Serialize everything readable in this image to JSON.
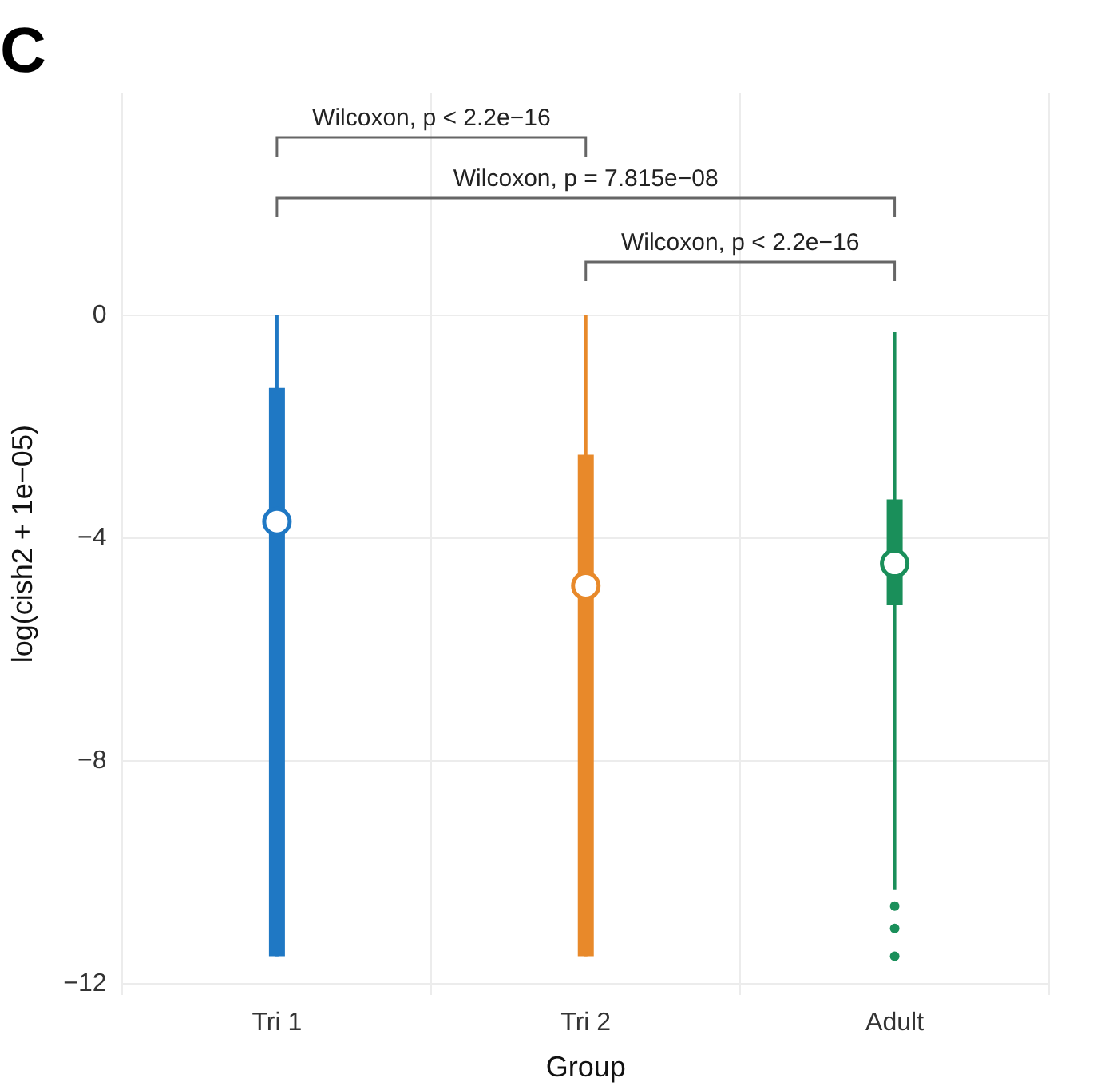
{
  "chart_data": {
    "type": "box",
    "title": "C",
    "xlabel": "Group",
    "ylabel": "log(cish2 + 1e−05)",
    "categories": [
      "Tri 1",
      "Tri 2",
      "Adult"
    ],
    "colors": [
      "#1f78c4",
      "#e8892a",
      "#1a8f5a"
    ],
    "boxes": [
      {
        "low": -11.5,
        "q1": -11.5,
        "median": -3.7,
        "q3": -1.3,
        "high": 0
      },
      {
        "low": -11.5,
        "q1": -11.5,
        "median": -4.85,
        "q3": -2.5,
        "high": 0
      },
      {
        "low": -10.3,
        "q1": -5.2,
        "median": -4.45,
        "q3": -3.3,
        "high": -0.3,
        "outliers": [
          -10.6,
          -11,
          -11.5
        ]
      }
    ],
    "ylim": [
      -12.2,
      4
    ],
    "yticks": [
      0,
      -4,
      -8,
      -12
    ],
    "grid": true,
    "annotations": [
      "Wilcoxon, p < 2.2e−16",
      "Wilcoxon, p = 7.815e−08",
      "Wilcoxon, p < 2.2e−16"
    ]
  }
}
